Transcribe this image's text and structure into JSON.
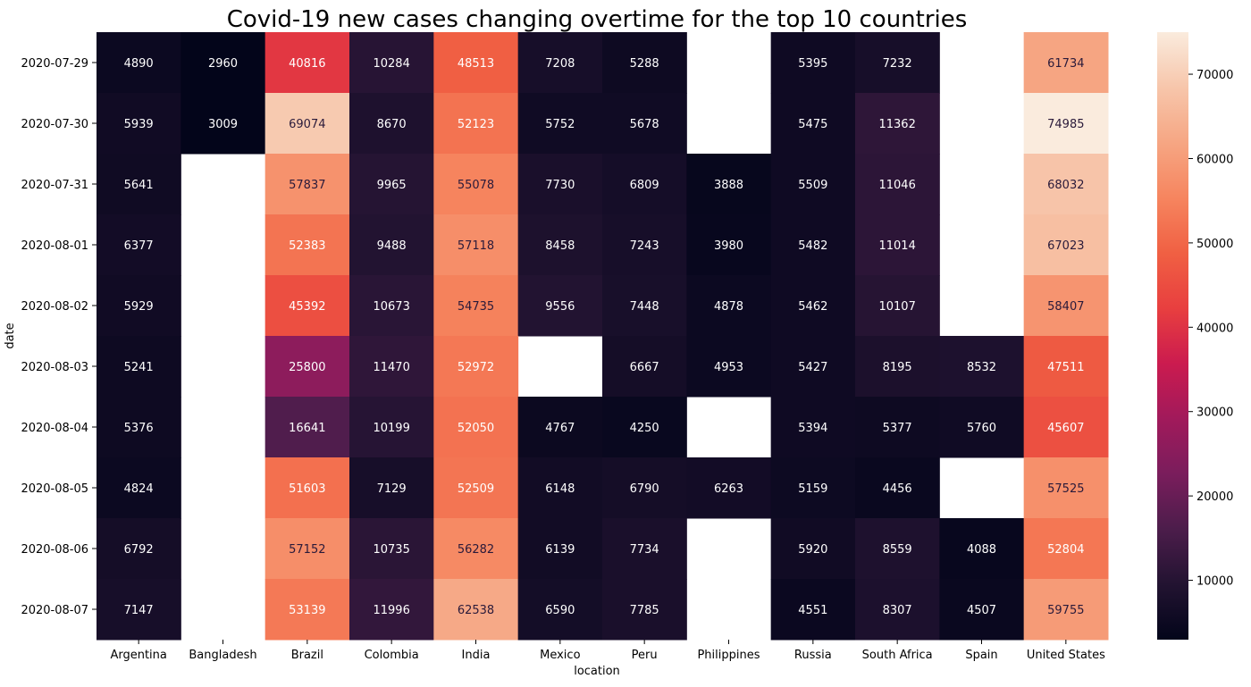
{
  "chart_data": {
    "type": "heatmap",
    "title": "Covid-19 new cases changing overtime for the top 10 countries",
    "xlabel": "location",
    "ylabel": "date",
    "x_categories": [
      "Argentina",
      "Bangladesh",
      "Brazil",
      "Colombia",
      "India",
      "Mexico",
      "Peru",
      "Philippines",
      "Russia",
      "South Africa",
      "Spain",
      "United States"
    ],
    "y_categories": [
      "2020-07-29",
      "2020-07-30",
      "2020-07-31",
      "2020-08-01",
      "2020-08-02",
      "2020-08-03",
      "2020-08-04",
      "2020-08-05",
      "2020-08-06",
      "2020-08-07"
    ],
    "values": [
      [
        4890,
        2960,
        40816,
        10284,
        48513,
        7208,
        5288,
        null,
        5395,
        7232,
        null,
        61734
      ],
      [
        5939,
        3009,
        69074,
        8670,
        52123,
        5752,
        5678,
        null,
        5475,
        11362,
        null,
        74985
      ],
      [
        5641,
        null,
        57837,
        9965,
        55078,
        7730,
        6809,
        3888,
        5509,
        11046,
        null,
        68032
      ],
      [
        6377,
        null,
        52383,
        9488,
        57118,
        8458,
        7243,
        3980,
        5482,
        11014,
        null,
        67023
      ],
      [
        5929,
        null,
        45392,
        10673,
        54735,
        9556,
        7448,
        4878,
        5462,
        10107,
        null,
        58407
      ],
      [
        5241,
        null,
        25800,
        11470,
        52972,
        null,
        6667,
        4953,
        5427,
        8195,
        8532,
        47511
      ],
      [
        5376,
        null,
        16641,
        10199,
        52050,
        4767,
        4250,
        null,
        5394,
        5377,
        5760,
        45607
      ],
      [
        4824,
        null,
        51603,
        7129,
        52509,
        6148,
        6790,
        6263,
        5159,
        4456,
        null,
        57525
      ],
      [
        6792,
        null,
        57152,
        10735,
        56282,
        6139,
        7734,
        null,
        5920,
        8559,
        4088,
        52804
      ],
      [
        7147,
        null,
        53139,
        11996,
        62538,
        6590,
        7785,
        null,
        4551,
        8307,
        4507,
        59755
      ]
    ],
    "colorbar": {
      "min": 2960,
      "max": 74985,
      "ticks": [
        10000,
        20000,
        30000,
        40000,
        50000,
        60000,
        70000
      ]
    },
    "colormap": [
      "#03051a",
      "#221331",
      "#4c1d4b",
      "#7a1d5c",
      "#a11a5b",
      "#cb1b4f",
      "#e83f3f",
      "#f06043",
      "#f6855f",
      "#f6a683",
      "#f7c6ab",
      "#faebdd"
    ],
    "grid": false,
    "legend": "none"
  }
}
